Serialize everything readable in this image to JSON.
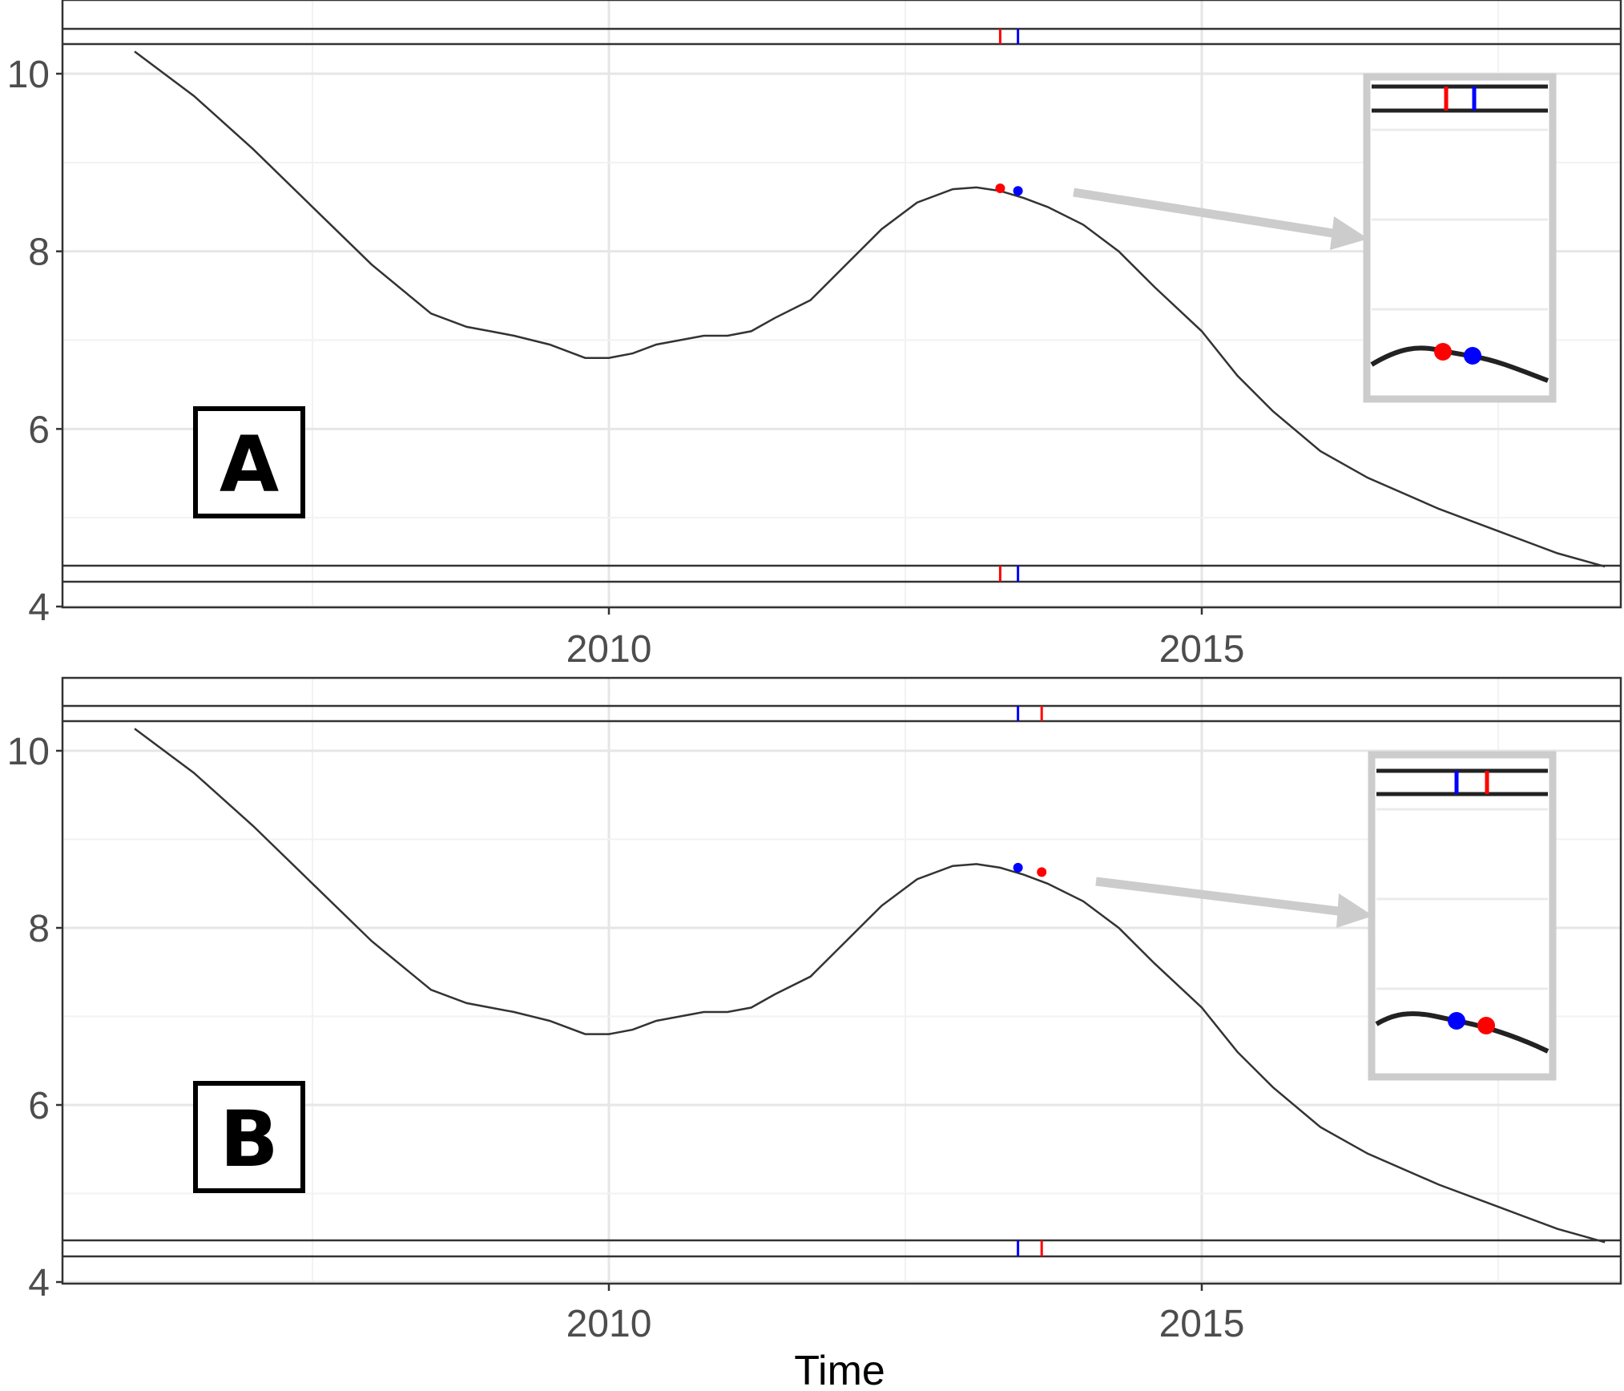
{
  "chart_data": {
    "type": "line",
    "xlabel": "Time",
    "ylabel": "",
    "xlim": [
      2005.4,
      2019.0
    ],
    "ylim": [
      4.0,
      10.8
    ],
    "x_ticks": [
      "2010",
      "2015"
    ],
    "x_tick_values": [
      2010,
      2015
    ],
    "y_ticks": [
      "4",
      "6",
      "8",
      "10"
    ],
    "y_tick_values": [
      4,
      6,
      8,
      10
    ],
    "grid": true,
    "series": [
      {
        "x": [
          2006.0,
          2006.5,
          2007.0,
          2007.5,
          2008.0,
          2008.5,
          2008.8,
          2009.0,
          2009.2,
          2009.5,
          2009.8,
          2010.0,
          2010.2,
          2010.4,
          2010.6,
          2010.8,
          2011.0,
          2011.2,
          2011.4,
          2011.7,
          2012.0,
          2012.3,
          2012.6,
          2012.9,
          2013.1,
          2013.3,
          2013.5,
          2013.7,
          2014.0,
          2014.3,
          2014.6,
          2015.0,
          2015.3,
          2015.6,
          2016.0,
          2016.4,
          2017.0,
          2017.5,
          2018.0,
          2018.4
        ],
        "y": [
          10.25,
          9.75,
          9.15,
          8.5,
          7.85,
          7.3,
          7.15,
          7.1,
          7.05,
          6.95,
          6.8,
          6.8,
          6.85,
          6.95,
          7.0,
          7.05,
          7.05,
          7.1,
          7.25,
          7.45,
          7.85,
          8.25,
          8.55,
          8.7,
          8.72,
          8.68,
          8.6,
          8.5,
          8.3,
          8.0,
          7.6,
          7.1,
          6.6,
          6.2,
          5.75,
          5.45,
          5.1,
          4.85,
          4.6,
          4.45
        ]
      }
    ],
    "panels": [
      {
        "label": "A",
        "markers": [
          {
            "color": "#ff0000",
            "x": 2013.3,
            "y": 8.71
          },
          {
            "color": "#0000ff",
            "x": 2013.45,
            "y": 8.68
          }
        ]
      },
      {
        "label": "B",
        "markers": [
          {
            "color": "#0000ff",
            "x": 2013.45,
            "y": 8.68
          },
          {
            "color": "#ff0000",
            "x": 2013.65,
            "y": 8.63
          }
        ]
      }
    ]
  }
}
